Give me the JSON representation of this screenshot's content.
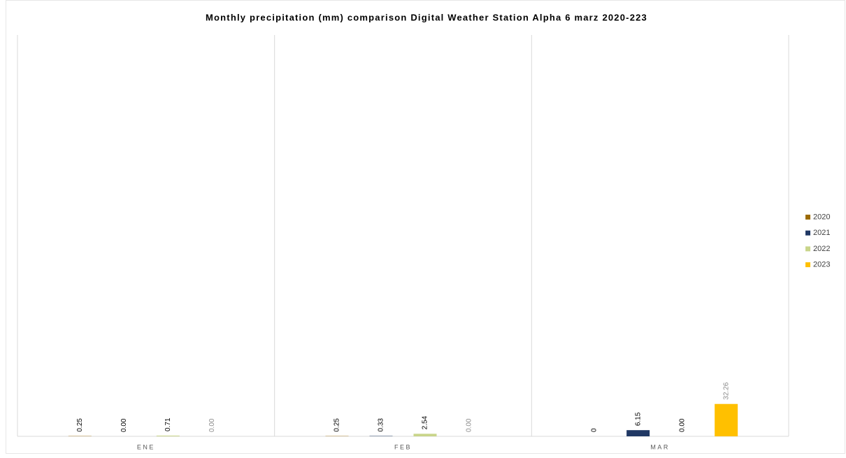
{
  "chart_data": {
    "type": "bar",
    "title": "Monthly precipitation (mm) comparison Digital Weather Station Alpha 6 marz 2020-223",
    "categories": [
      "ENE",
      "FEB",
      "MAR"
    ],
    "series": [
      {
        "name": "2020",
        "color": "#9c6b00",
        "values": [
          0.25,
          0.25,
          0
        ],
        "value_labels": [
          "0.25",
          "0.25",
          "0"
        ]
      },
      {
        "name": "2021",
        "color": "#203864",
        "values": [
          0,
          0.33,
          6.15
        ],
        "value_labels": [
          "0.00",
          "0.33",
          "6.15"
        ]
      },
      {
        "name": "2022",
        "color": "#c9d58a",
        "values": [
          0.71,
          2.54,
          0
        ],
        "value_labels": [
          "0.71",
          "2.54",
          "0.00"
        ]
      },
      {
        "name": "2023",
        "color": "#ffc000",
        "values": [
          0,
          0,
          32.26
        ],
        "value_labels": [
          "0.00",
          "0.00",
          "32.26"
        ]
      }
    ],
    "ylim": [
      0,
      400
    ]
  }
}
